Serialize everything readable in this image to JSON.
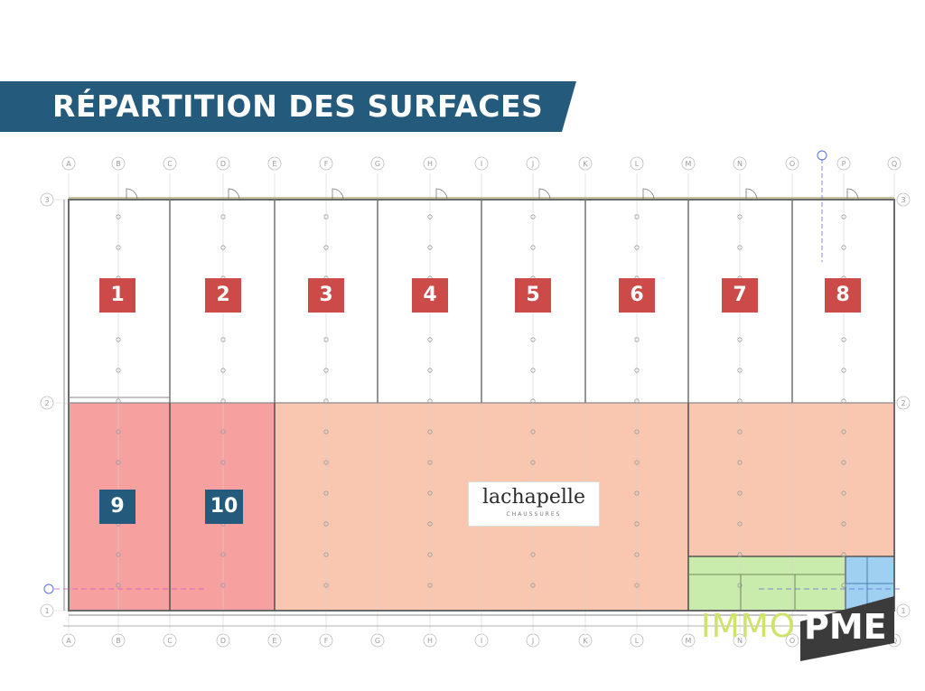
{
  "header": {
    "title": "RÉPARTITION DES SURFACES"
  },
  "grid": {
    "columns": [
      "A",
      "B",
      "C",
      "D",
      "E",
      "F",
      "G",
      "H",
      "I",
      "J",
      "K",
      "L",
      "M",
      "N",
      "O",
      "P",
      "Q"
    ],
    "rows": [
      "3",
      "2",
      "1"
    ]
  },
  "units_top": [
    {
      "label": "1"
    },
    {
      "label": "2"
    },
    {
      "label": "3"
    },
    {
      "label": "4"
    },
    {
      "label": "5"
    },
    {
      "label": "6"
    },
    {
      "label": "7"
    },
    {
      "label": "8"
    }
  ],
  "units_bottom": [
    {
      "label": "9"
    },
    {
      "label": "10"
    }
  ],
  "tenant": {
    "name": "lachapelle",
    "subtitle": "CHAUSSURES"
  },
  "brand": {
    "part1": "IMMO",
    "part2": "PME"
  },
  "colors": {
    "banner": "#245b7d",
    "unit_label_red": "#cc4a47",
    "unit_label_blue": "#245b7d",
    "zone_red": "#f7a0a0",
    "zone_orange": "#f9c7b0",
    "zone_green": "#c9ecac",
    "zone_blue": "#9fd0f2",
    "brand_accent": "#cfe26a",
    "brand_dark": "#3b3b3b"
  }
}
